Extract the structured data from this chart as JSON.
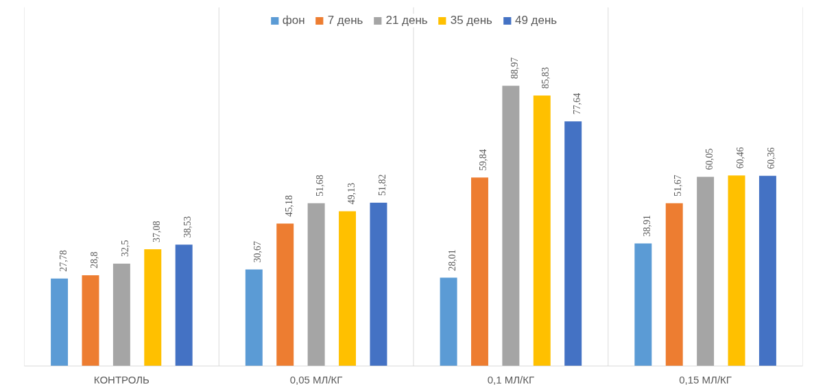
{
  "chart_data": {
    "type": "bar",
    "categories": [
      "КОНТРОЛЬ",
      "0,05 МЛ/КГ",
      "0,1 МЛ/КГ",
      "0,15 МЛ/КГ"
    ],
    "series": [
      {
        "name": "фон",
        "color": "#5b9bd5",
        "values": [
          27.78,
          30.67,
          28.01,
          38.91
        ],
        "value_labels": [
          "27,78",
          "30,67",
          "28,01",
          "38,91"
        ]
      },
      {
        "name": "7 день",
        "color": "#ed7d31",
        "values": [
          28.8,
          45.18,
          59.84,
          51.67
        ],
        "value_labels": [
          "28,8",
          "45,18",
          "59,84",
          "51,67"
        ]
      },
      {
        "name": "21 день",
        "color": "#a5a5a5",
        "values": [
          32.5,
          51.68,
          88.97,
          60.05
        ],
        "value_labels": [
          "32,5",
          "51,68",
          "88,97",
          "60,05"
        ]
      },
      {
        "name": "35 день",
        "color": "#ffc000",
        "values": [
          37.08,
          49.13,
          85.83,
          60.46
        ],
        "value_labels": [
          "37,08",
          "49,13",
          "85,83",
          "60,46"
        ]
      },
      {
        "name": "49 день",
        "color": "#4472c4",
        "values": [
          38.53,
          51.82,
          77.64,
          60.36
        ],
        "value_labels": [
          "38,53",
          "51,82",
          "77,64",
          "60,36"
        ]
      }
    ],
    "legend": "top"
  }
}
